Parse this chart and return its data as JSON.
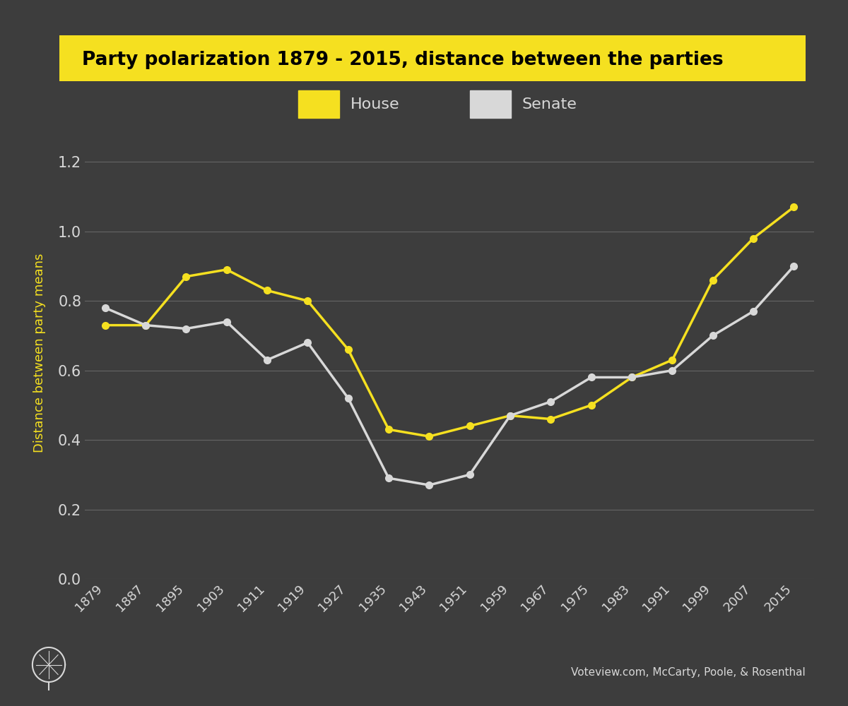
{
  "title": "Party polarization 1879 - 2015, distance between the parties",
  "ylabel": "Distance between party means",
  "source_text": "Voteview.com, McCarty, Poole, & Rosenthal",
  "background_color": "#3d3d3d",
  "title_bg_color": "#f5e020",
  "title_text_color": "#000000",
  "house_color": "#f5e020",
  "senate_color": "#d8d8d8",
  "grid_color": "#777777",
  "ylabel_color": "#f5e020",
  "tick_color": "#d8d8d8",
  "years": [
    1879,
    1887,
    1895,
    1903,
    1911,
    1919,
    1927,
    1935,
    1943,
    1951,
    1959,
    1967,
    1975,
    1983,
    1991,
    1999,
    2007,
    2015
  ],
  "house_values": [
    0.73,
    0.73,
    0.87,
    0.89,
    0.83,
    0.8,
    0.66,
    0.43,
    0.41,
    0.44,
    0.47,
    0.46,
    0.5,
    0.58,
    0.63,
    0.86,
    0.98,
    1.07
  ],
  "senate_values": [
    0.78,
    0.73,
    0.72,
    0.74,
    0.63,
    0.68,
    0.52,
    0.29,
    0.27,
    0.3,
    0.47,
    0.51,
    0.58,
    0.58,
    0.6,
    0.7,
    0.77,
    0.9
  ],
  "ylim": [
    0.0,
    1.3
  ],
  "yticks": [
    0.0,
    0.2,
    0.4,
    0.6,
    0.8,
    1.0,
    1.2
  ],
  "legend_house": "House",
  "legend_senate": "Senate",
  "line_width": 2.5,
  "marker_size": 7
}
